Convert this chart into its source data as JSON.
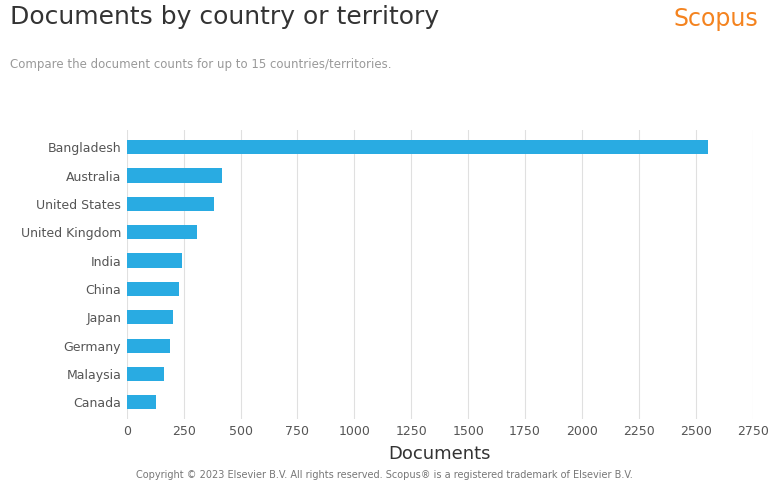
{
  "title": "Documents by country or territory",
  "subtitle": "Compare the document counts for up to 15 countries/territories.",
  "scopus_label": "Scopus",
  "scopus_color": "#f4831f",
  "xlabel": "Documents",
  "footer": "Copyright © 2023 Elsevier B.V. All rights reserved. Scopus® is a registered trademark of Elsevier B.V.",
  "categories": [
    "Bangladesh",
    "Australia",
    "United States",
    "United Kingdom",
    "India",
    "China",
    "Japan",
    "Germany",
    "Malaysia",
    "Canada"
  ],
  "values": [
    2553,
    420,
    382,
    310,
    245,
    228,
    205,
    190,
    165,
    130
  ],
  "bar_color": "#29abe2",
  "background_color": "#ffffff",
  "grid_color": "#e0e0e0",
  "xticks": [
    0,
    250,
    500,
    750,
    1000,
    1250,
    1500,
    1750,
    2000,
    2250,
    2500,
    2750
  ],
  "xlim": [
    0,
    2750
  ],
  "title_fontsize": 18,
  "subtitle_fontsize": 8.5,
  "xlabel_fontsize": 13,
  "tick_fontsize": 9,
  "bar_height": 0.5
}
